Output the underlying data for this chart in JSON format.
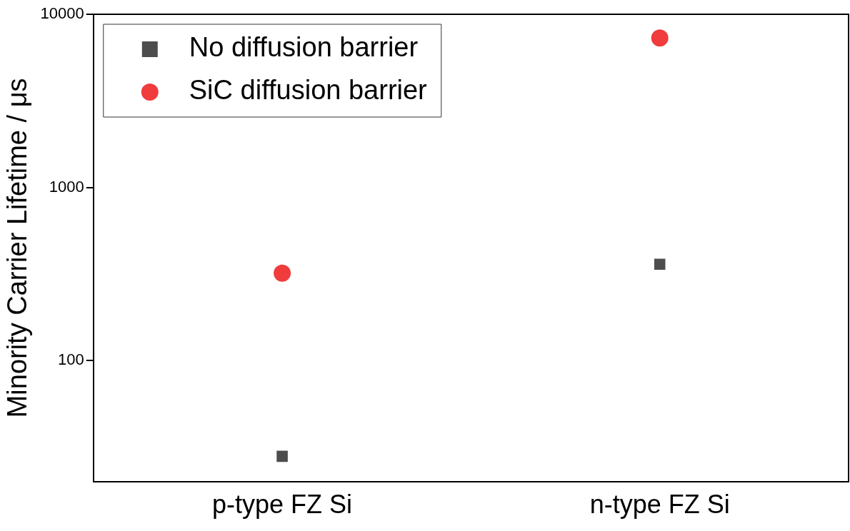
{
  "chart_data": {
    "type": "scatter",
    "ylabel": "Minority Carrier Lifetime / μs",
    "categories": [
      "p-type FZ Si",
      "n-type FZ Si"
    ],
    "series": [
      {
        "name": "No diffusion barrier",
        "color": "#4d4d4d",
        "marker": "square",
        "values": [
          28,
          360
        ]
      },
      {
        "name": "SiC diffusion barrier",
        "color": "#f03c3c",
        "marker": "circle",
        "values": [
          320,
          7300
        ]
      }
    ],
    "log": "y",
    "ylim": [
      20,
      10000
    ],
    "yticks": [
      100,
      1000,
      10000
    ],
    "grid": false,
    "legend": "top left"
  }
}
